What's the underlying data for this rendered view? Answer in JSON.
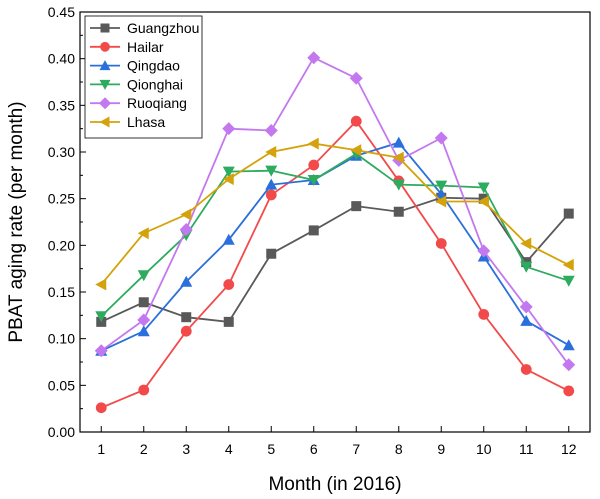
{
  "chart_data": {
    "type": "line",
    "title": "",
    "xlabel": "Month (in 2016)",
    "ylabel": "PBAT aging rate (per month)",
    "x": [
      1,
      2,
      3,
      4,
      5,
      6,
      7,
      8,
      9,
      10,
      11,
      12
    ],
    "xlim": [
      0.5,
      12.5
    ],
    "ylim": [
      0.0,
      0.45
    ],
    "yticks": [
      "0.00",
      "0.05",
      "0.10",
      "0.15",
      "0.20",
      "0.25",
      "0.30",
      "0.35",
      "0.40",
      "0.45"
    ],
    "grid": false,
    "legend_position": "top-left",
    "series": [
      {
        "name": "Guangzhou",
        "color": "#595959",
        "marker": "square",
        "values": [
          0.118,
          0.139,
          0.123,
          0.118,
          0.191,
          0.216,
          0.242,
          0.236,
          0.251,
          0.25,
          0.182,
          0.234
        ]
      },
      {
        "name": "Hailar",
        "color": "#f24a4a",
        "marker": "circle",
        "values": [
          0.026,
          0.045,
          0.108,
          0.158,
          0.254,
          0.286,
          0.333,
          0.269,
          0.202,
          0.126,
          0.067,
          0.044
        ]
      },
      {
        "name": "Qingdao",
        "color": "#2a6fdb",
        "marker": "triangle-up",
        "values": [
          0.087,
          0.108,
          0.161,
          0.206,
          0.265,
          0.27,
          0.296,
          0.31,
          0.255,
          0.188,
          0.119,
          0.093
        ]
      },
      {
        "name": "Qionghai",
        "color": "#2dab5e",
        "marker": "triangle-down",
        "values": [
          0.124,
          0.168,
          0.211,
          0.279,
          0.28,
          0.27,
          0.298,
          0.265,
          0.264,
          0.262,
          0.177,
          0.162
        ]
      },
      {
        "name": "Ruoqiang",
        "color": "#c478f0",
        "marker": "diamond",
        "values": [
          0.087,
          0.12,
          0.217,
          0.325,
          0.323,
          0.401,
          0.379,
          0.291,
          0.315,
          0.194,
          0.134,
          0.072
        ]
      },
      {
        "name": "Lhasa",
        "color": "#d4a20a",
        "marker": "triangle-left",
        "values": [
          0.158,
          0.213,
          0.233,
          0.271,
          0.3,
          0.309,
          0.302,
          0.294,
          0.247,
          0.247,
          0.202,
          0.179
        ]
      }
    ]
  }
}
